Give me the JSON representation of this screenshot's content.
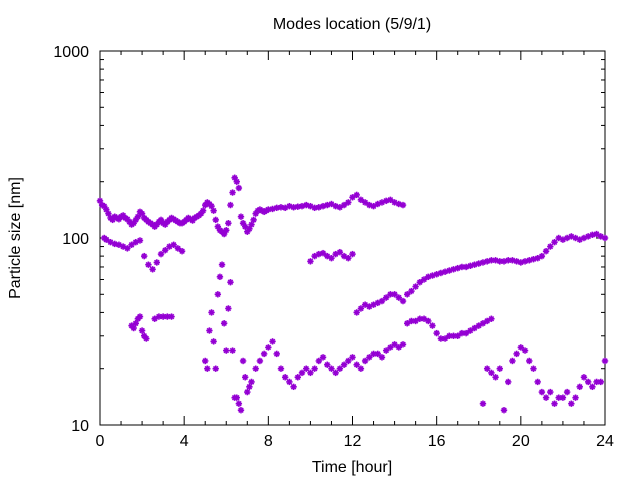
{
  "chart_data": {
    "type": "scatter",
    "title": "Modes location (5/9/1)",
    "xlabel": "Time [hour]",
    "ylabel": "Particle size [nm]",
    "xlim": [
      0,
      24
    ],
    "ylim": [
      10,
      1000
    ],
    "yscale": "log",
    "grid": false,
    "legend": "none",
    "marker": "asterisk",
    "color": "#9400d3",
    "x_ticks": [
      0,
      4,
      8,
      12,
      16,
      20,
      24
    ],
    "x_tick_labels": [
      "0",
      "4",
      "8",
      "12",
      "16",
      "20",
      "24"
    ],
    "y_ticks": [
      10,
      100,
      1000
    ],
    "y_tick_labels": [
      "10",
      "100",
      "1000"
    ],
    "series": [
      {
        "x": [
          0.0,
          0.1,
          0.2,
          0.3,
          0.4,
          0.5,
          0.6,
          0.7,
          0.8,
          0.9,
          1.0,
          1.1,
          1.2,
          1.3,
          1.4,
          1.5,
          1.6,
          1.7,
          1.8,
          1.9,
          2.0,
          2.1,
          2.2,
          2.3,
          2.4,
          2.5,
          2.6,
          2.7,
          2.8,
          2.9,
          3.0,
          3.1,
          3.2,
          3.3,
          3.4,
          3.5,
          3.6,
          3.7,
          3.8,
          3.9,
          4.0,
          4.1,
          4.2,
          4.3,
          4.4,
          4.5,
          4.6,
          4.7,
          4.8,
          4.9,
          5.0,
          5.1,
          5.2,
          5.3,
          5.4,
          5.5,
          5.6,
          5.7,
          5.8,
          5.9,
          6.0,
          6.1,
          6.2,
          6.3,
          6.4,
          6.5,
          6.6,
          6.7,
          6.8,
          6.9,
          7.0,
          7.1,
          7.2,
          7.3,
          7.4,
          7.5,
          7.6,
          7.7,
          7.8,
          7.9,
          8.0,
          8.2,
          8.4,
          8.6,
          8.8,
          9.0,
          9.2,
          9.4,
          9.6,
          9.8,
          10.0,
          10.2,
          10.4,
          10.6,
          10.8,
          11.0,
          11.2,
          11.4,
          11.6,
          11.8,
          12.0,
          12.2,
          12.4,
          12.6,
          12.8,
          13.0,
          13.2,
          13.4,
          13.6,
          13.8,
          14.0,
          14.2,
          14.4
        ],
        "y": [
          158,
          150,
          148,
          142,
          135,
          128,
          125,
          130,
          128,
          126,
          130,
          132,
          128,
          126,
          122,
          118,
          120,
          125,
          130,
          138,
          135,
          128,
          125,
          122,
          120,
          118,
          115,
          118,
          122,
          125,
          120,
          118,
          122,
          125,
          128,
          126,
          124,
          122,
          120,
          120,
          122,
          125,
          128,
          126,
          124,
          128,
          130,
          132,
          135,
          140,
          150,
          155,
          152,
          148,
          140,
          125,
          115,
          110,
          108,
          105,
          110,
          120,
          150,
          175,
          210,
          200,
          185,
          130,
          120,
          115,
          108,
          112,
          118,
          125,
          135,
          140,
          142,
          140,
          138,
          140,
          142,
          143,
          145,
          146,
          145,
          148,
          146,
          147,
          148,
          150,
          148,
          145,
          146,
          148,
          150,
          152,
          148,
          146,
          150,
          155,
          165,
          170,
          160,
          155,
          150,
          148,
          152,
          155,
          158,
          160,
          155,
          152,
          150
        ]
      },
      {
        "x": [
          0.2,
          0.3,
          0.5,
          0.7,
          0.9,
          1.1,
          1.3,
          1.5,
          1.7,
          1.9,
          2.1,
          2.3,
          2.5,
          2.7,
          2.9,
          3.1,
          3.3,
          3.5,
          3.7,
          3.9
        ],
        "y": [
          100,
          98,
          95,
          93,
          92,
          90,
          88,
          92,
          95,
          97,
          80,
          72,
          68,
          74,
          82,
          86,
          90,
          92,
          88,
          85
        ]
      },
      {
        "x": [
          10.0,
          10.2,
          10.4,
          10.6,
          10.8,
          11.0,
          11.2,
          11.4,
          11.6,
          11.8,
          12.0
        ],
        "y": [
          75,
          80,
          82,
          83,
          80,
          78,
          82,
          84,
          80,
          78,
          82
        ]
      },
      {
        "x": [
          1.5,
          1.6,
          1.7,
          1.8,
          1.9,
          2.0,
          2.1,
          2.2,
          2.6,
          2.8,
          3.0,
          3.2,
          3.4
        ],
        "y": [
          34,
          33,
          35,
          37,
          38,
          32,
          30,
          29,
          37,
          38,
          38,
          38,
          38
        ]
      },
      {
        "x": [
          5.0,
          5.1,
          5.2,
          5.3,
          5.4,
          5.5,
          5.6,
          5.7,
          5.8,
          5.9,
          6.0,
          6.1,
          6.2,
          6.3,
          6.4,
          6.5,
          6.6,
          6.7,
          6.8,
          6.9,
          7.0,
          7.1,
          7.2,
          7.4,
          7.6,
          7.8,
          8.0,
          8.2,
          8.4,
          8.6,
          8.8,
          9.0,
          9.2,
          9.4,
          9.6,
          9.8,
          10.0,
          10.2,
          10.4,
          10.6,
          10.8,
          11.0,
          11.2,
          11.4,
          11.6,
          11.8,
          12.0,
          12.2,
          12.4,
          12.6,
          12.8,
          13.0,
          13.2,
          13.4,
          13.6,
          13.8,
          14.0
        ],
        "y": [
          22,
          20,
          32,
          40,
          28,
          20,
          50,
          62,
          72,
          35,
          25,
          42,
          58,
          25,
          14,
          14,
          13,
          12,
          22,
          18,
          15,
          16,
          17,
          20,
          22,
          24,
          26,
          28,
          24,
          20,
          18,
          17,
          16,
          18,
          19,
          20,
          19,
          20,
          22,
          23,
          21,
          20,
          19,
          20,
          21,
          22,
          23,
          21,
          20,
          22,
          23,
          24,
          24,
          23,
          25,
          26,
          27
        ]
      },
      {
        "x": [
          12.2,
          12.4,
          12.6,
          12.8,
          13.0,
          13.2,
          13.4,
          13.6,
          13.8,
          14.0,
          14.2,
          14.4,
          14.6,
          14.8,
          15.0,
          15.2,
          15.4,
          15.6,
          15.8,
          16.0,
          16.2,
          16.4,
          16.6,
          16.8,
          17.0,
          17.2,
          17.4,
          17.6,
          17.8,
          18.0,
          18.2,
          18.4,
          18.6,
          18.8,
          19.0,
          19.2,
          19.4,
          19.6,
          19.8,
          20.0,
          20.2,
          20.4,
          20.6,
          20.8,
          21.0,
          21.2,
          21.4,
          21.6,
          21.8,
          22.0,
          22.2,
          22.4,
          22.6,
          22.8,
          23.0,
          23.2,
          23.4,
          23.6,
          23.8,
          24.0
        ],
        "y": [
          40,
          42,
          44,
          43,
          44,
          45,
          46,
          48,
          50,
          50,
          48,
          46,
          50,
          52,
          55,
          58,
          60,
          62,
          63,
          64,
          65,
          66,
          67,
          68,
          69,
          70,
          70,
          71,
          72,
          73,
          74,
          75,
          76,
          76,
          75,
          75,
          76,
          76,
          75,
          74,
          75,
          76,
          77,
          78,
          80,
          85,
          90,
          95,
          100,
          98,
          100,
          102,
          100,
          98,
          100,
          102,
          104,
          105,
          102,
          100
        ]
      },
      {
        "x": [
          14.2,
          14.4,
          14.6,
          14.8,
          15.0,
          15.2,
          15.4,
          15.6,
          15.8,
          16.0,
          16.2,
          16.4,
          16.6,
          16.8,
          17.0,
          17.2,
          17.4,
          17.6,
          17.8,
          18.0,
          18.2,
          18.4,
          18.6
        ],
        "y": [
          26,
          27,
          35,
          36,
          36,
          37,
          37,
          36,
          34,
          31,
          29,
          29,
          30,
          30,
          30,
          31,
          31,
          32,
          33,
          34,
          35,
          36,
          37
        ]
      },
      {
        "x": [
          18.2,
          18.4,
          18.6,
          18.8,
          19.0,
          19.2,
          19.4,
          19.6,
          19.8,
          20.0,
          20.2,
          20.4,
          20.6,
          20.8,
          21.0,
          21.2,
          21.4,
          21.6,
          21.8,
          22.0,
          22.2,
          22.4,
          22.6,
          22.8,
          23.0,
          23.2,
          23.4,
          23.6,
          23.8,
          24.0
        ],
        "y": [
          13,
          20,
          19,
          18,
          20,
          12,
          17,
          22,
          24,
          26,
          25,
          22,
          20,
          17,
          15,
          14,
          15,
          13,
          14,
          14,
          15,
          13,
          14,
          16,
          18,
          17,
          16,
          17,
          17,
          22
        ]
      }
    ]
  }
}
